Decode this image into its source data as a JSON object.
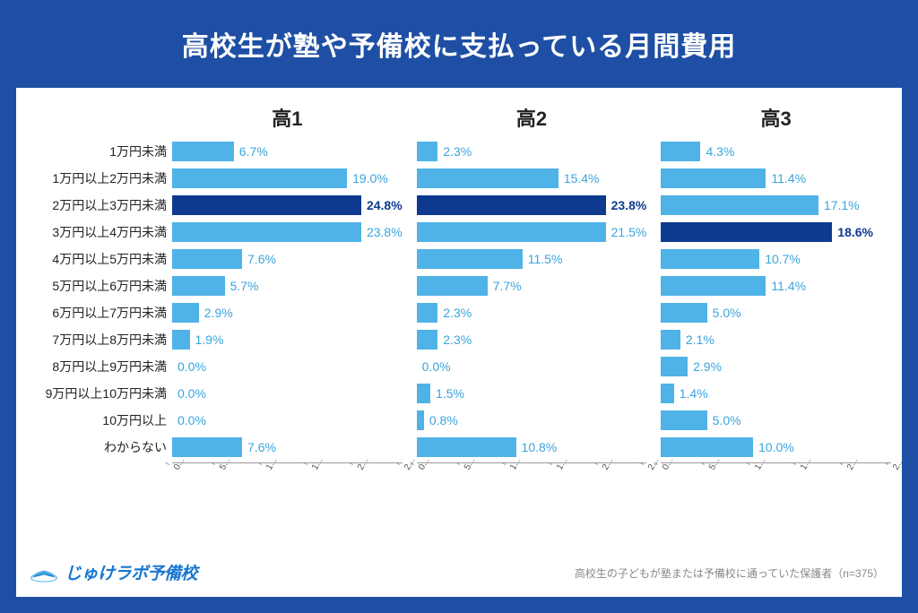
{
  "title": "高校生が塾や予備校に支払っている月間費用",
  "categories": [
    "1万円未満",
    "1万円以上2万円未満",
    "2万円以上3万円未満",
    "3万円以上4万円未満",
    "4万円以上5万円未満",
    "5万円以上6万円未満",
    "6万円以上7万円未満",
    "7万円以上8万円未満",
    "8万円以上9万円未満",
    "9万円以上10万円未満",
    "10万円以上",
    "わからない"
  ],
  "panels": [
    {
      "title": "高1",
      "values": [
        6.7,
        19.0,
        24.8,
        23.8,
        7.6,
        5.7,
        2.9,
        1.9,
        0.0,
        0.0,
        0.0,
        7.6
      ],
      "highlight_index": 2
    },
    {
      "title": "高2",
      "values": [
        2.3,
        15.4,
        23.8,
        21.5,
        11.5,
        7.7,
        2.3,
        2.3,
        0.0,
        1.5,
        0.8,
        10.8
      ],
      "highlight_index": 2
    },
    {
      "title": "高3",
      "values": [
        4.3,
        11.4,
        17.1,
        18.6,
        10.7,
        11.4,
        5.0,
        2.1,
        2.9,
        1.4,
        5.0,
        10.0
      ],
      "highlight_index": 3
    }
  ],
  "style": {
    "bar_color": "#4fb3e8",
    "highlight_color": "#0d3a8f",
    "label_color_normal": "#3aa4dd",
    "label_color_highlight": "#0d3a8f",
    "xmax": 25,
    "xticks": [
      "0...",
      "5...",
      "1...",
      "1...",
      "2...",
      "2..."
    ],
    "xtick_positions": [
      0,
      5,
      10,
      15,
      20,
      25
    ],
    "outer_bg": "#1f4fa4",
    "panel_bg": "#ffffff"
  },
  "logo_text": "じゅけラボ予備校",
  "footer_note": "高校生の子どもが塾または予備校に通っていた保護者（n=375）"
}
